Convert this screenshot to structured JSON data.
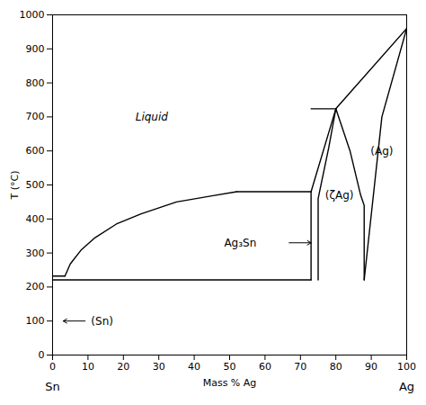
{
  "chart_data": {
    "type": "line",
    "xlabel": "Mass % Ag",
    "ylabel": "T (°C)",
    "xlim": [
      0,
      100
    ],
    "ylim": [
      0,
      1000
    ],
    "xticks": [
      0,
      10,
      20,
      30,
      40,
      50,
      60,
      70,
      80,
      90,
      100
    ],
    "yticks": [
      0,
      100,
      200,
      300,
      400,
      500,
      600,
      700,
      800,
      900,
      1000
    ],
    "color": "#000000",
    "series": [
      {
        "x": [
          0,
          73
        ],
        "values": [
          221,
          221
        ]
      },
      {
        "x": [
          0,
          3.5
        ],
        "values": [
          232,
          232
        ]
      },
      {
        "x": [
          3.5,
          5,
          8,
          12,
          18,
          25,
          35,
          45,
          52
        ],
        "values": [
          232,
          268,
          308,
          345,
          385,
          415,
          450,
          468,
          480
        ]
      },
      {
        "x": [
          52,
          73
        ],
        "values": [
          480,
          480
        ]
      },
      {
        "x": [
          73,
          80
        ],
        "values": [
          480,
          724
        ]
      },
      {
        "x": [
          80,
          100
        ],
        "values": [
          724,
          960
        ]
      },
      {
        "x": [
          73,
          73
        ],
        "values": [
          221,
          480
        ]
      },
      {
        "x": [
          73,
          80
        ],
        "values": [
          724,
          724
        ]
      },
      {
        "x": [
          80,
          78,
          76,
          75,
          75
        ],
        "values": [
          724,
          610,
          510,
          460,
          221
        ]
      },
      {
        "x": [
          80,
          84,
          87,
          88,
          88
        ],
        "values": [
          724,
          600,
          470,
          440,
          221
        ]
      },
      {
        "x": [
          88,
          93,
          100
        ],
        "values": [
          221,
          700,
          960
        ]
      }
    ],
    "annotations": [
      {
        "text": "Liquid",
        "x": 28,
        "y": 700,
        "style": "italic"
      },
      {
        "text": "(Sn)",
        "x": 14,
        "y": 100,
        "style": "normal"
      },
      {
        "text": "Ag₃Sn",
        "x": 53,
        "y": 330,
        "style": "normal"
      },
      {
        "text": "(ζAg)",
        "x": 81,
        "y": 470,
        "style": "normal"
      },
      {
        "text": "(Ag)",
        "x": 93,
        "y": 600,
        "style": "normal"
      }
    ],
    "arrows": [
      {
        "x_tail": 13,
        "y_tail": 100,
        "x_head": 3,
        "y_head": 100
      },
      {
        "x_tail": 63,
        "y_tail": 330,
        "x_head": 73,
        "y_head": 330
      }
    ],
    "xlabel_left": "Sn",
    "xlabel_right": "Ag"
  }
}
